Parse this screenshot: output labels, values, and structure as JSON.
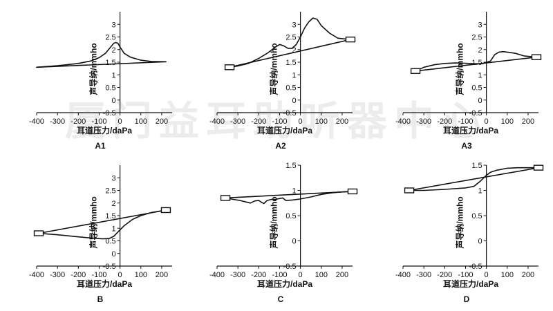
{
  "watermark": "厦门益耳助听器中心",
  "chart_data": [
    {
      "type": "line",
      "title": "A1",
      "xlabel": "耳道压力/daPa",
      "ylabel": "声导纳/mmho",
      "xlim": [
        -400,
        250
      ],
      "ylim": [
        -0.5,
        3.5
      ],
      "xticks": [
        -400,
        -300,
        -200,
        -100,
        0,
        100,
        200
      ],
      "yticks": [
        -0.5,
        0,
        0.5,
        1,
        1.5,
        2,
        2.5,
        3
      ],
      "grid": false,
      "series": [
        {
          "x": [
            -400,
            -300,
            -200,
            -140,
            -100,
            -70,
            -45,
            -30,
            -20,
            -10,
            0,
            20,
            50,
            100,
            150,
            220
          ],
          "y": [
            1.3,
            1.36,
            1.45,
            1.55,
            1.68,
            1.85,
            2.1,
            2.25,
            2.28,
            2.25,
            2.1,
            1.85,
            1.7,
            1.58,
            1.53,
            1.52
          ]
        },
        {
          "x": [
            -400,
            220
          ],
          "y": [
            1.3,
            1.52
          ]
        }
      ],
      "markers": []
    },
    {
      "type": "line",
      "title": "A2",
      "xlabel": "耳道压力/daPa",
      "ylabel": "声导纳/mmho",
      "xlim": [
        -400,
        250
      ],
      "ylim": [
        -0.5,
        3.5
      ],
      "xticks": [
        -400,
        -300,
        -200,
        -100,
        0,
        100,
        200
      ],
      "yticks": [
        -0.5,
        0,
        0.5,
        1,
        1.5,
        2,
        2.5,
        3
      ],
      "grid": false,
      "series": [
        {
          "x": [
            -340,
            -300,
            -250,
            -200,
            -160,
            -120,
            -100,
            -80,
            -60,
            -40,
            -20,
            0,
            20,
            40,
            60,
            80,
            100,
            140,
            180,
            240
          ],
          "y": [
            1.3,
            1.35,
            1.45,
            1.65,
            1.85,
            2.1,
            2.2,
            2.15,
            2.05,
            2.05,
            2.2,
            2.5,
            2.85,
            3.1,
            3.25,
            3.2,
            2.95,
            2.65,
            2.45,
            2.4
          ]
        },
        {
          "x": [
            -340,
            240
          ],
          "y": [
            1.3,
            2.4
          ]
        }
      ],
      "markers": [
        {
          "x": -340,
          "y": 1.3
        },
        {
          "x": 240,
          "y": 2.4
        }
      ]
    },
    {
      "type": "line",
      "title": "A3",
      "xlabel": "耳道压力/daPa",
      "ylabel": "声导纳/mmho",
      "xlim": [
        -400,
        250
      ],
      "ylim": [
        -0.5,
        3.5
      ],
      "xticks": [
        -400,
        -300,
        -200,
        -100,
        0,
        100,
        200
      ],
      "yticks": [
        -0.5,
        0,
        0.5,
        1,
        1.5,
        2,
        2.5,
        3
      ],
      "grid": false,
      "series": [
        {
          "x": [
            -340,
            -300,
            -250,
            -200,
            -150,
            -100,
            -60,
            -20,
            20,
            40,
            60,
            80,
            100,
            140,
            180,
            240
          ],
          "y": [
            1.15,
            1.3,
            1.4,
            1.45,
            1.47,
            1.46,
            1.44,
            1.44,
            1.55,
            1.8,
            1.9,
            1.92,
            1.9,
            1.85,
            1.75,
            1.7
          ]
        },
        {
          "x": [
            -340,
            240
          ],
          "y": [
            1.15,
            1.7
          ]
        }
      ],
      "markers": [
        {
          "x": -340,
          "y": 1.15
        },
        {
          "x": 240,
          "y": 1.7
        }
      ]
    },
    {
      "type": "line",
      "title": "B",
      "xlabel": "耳道压力/daPa",
      "ylabel": "声导纳/mmho",
      "xlim": [
        -400,
        250
      ],
      "ylim": [
        -0.5,
        3.5
      ],
      "xticks": [
        -400,
        -300,
        -200,
        -100,
        0,
        100,
        200
      ],
      "yticks": [
        -0.5,
        0,
        0.5,
        1,
        1.5,
        2,
        2.5,
        3
      ],
      "grid": false,
      "series": [
        {
          "x": [
            -390,
            -300,
            -200,
            -120,
            -80,
            -50,
            -30,
            -10,
            20,
            60,
            100,
            150,
            220
          ],
          "y": [
            0.8,
            0.74,
            0.66,
            0.6,
            0.58,
            0.6,
            0.68,
            0.85,
            1.1,
            1.35,
            1.5,
            1.62,
            1.72
          ]
        },
        {
          "x": [
            -390,
            220
          ],
          "y": [
            0.8,
            1.72
          ]
        }
      ],
      "markers": [
        {
          "x": -390,
          "y": 0.8
        },
        {
          "x": 220,
          "y": 1.72
        }
      ]
    },
    {
      "type": "line",
      "title": "C",
      "xlabel": "耳道压力/daPa",
      "ylabel": "声导纳/mmho",
      "xlim": [
        -400,
        250
      ],
      "ylim": [
        -0.5,
        1.5
      ],
      "xticks": [
        -400,
        -300,
        -200,
        -100,
        0,
        100,
        200
      ],
      "yticks": [
        -0.5,
        0,
        0.5,
        1,
        1.5
      ],
      "grid": false,
      "series": [
        {
          "x": [
            -360,
            -320,
            -290,
            -260,
            -240,
            -220,
            -200,
            -185,
            -175,
            -160,
            -140,
            -120,
            -100,
            -85,
            -70,
            -40,
            0,
            50,
            100,
            150,
            200,
            250
          ],
          "y": [
            0.85,
            0.82,
            0.8,
            0.77,
            0.75,
            0.79,
            0.8,
            0.76,
            0.74,
            0.8,
            0.82,
            0.82,
            0.84,
            0.85,
            0.8,
            0.81,
            0.83,
            0.87,
            0.92,
            0.95,
            0.97,
            0.98
          ]
        },
        {
          "x": [
            -360,
            250
          ],
          "y": [
            0.85,
            0.98
          ]
        }
      ],
      "markers": [
        {
          "x": -360,
          "y": 0.85
        },
        {
          "x": 250,
          "y": 0.98
        }
      ]
    },
    {
      "type": "line",
      "title": "D",
      "xlabel": "耳道压力/daPa",
      "ylabel": "声导纳/mmho",
      "xlim": [
        -400,
        250
      ],
      "ylim": [
        -0.5,
        1.5
      ],
      "xticks": [
        -400,
        -300,
        -200,
        -100,
        0,
        100,
        200
      ],
      "yticks": [
        -0.5,
        0,
        0.5,
        1,
        1.5
      ],
      "grid": false,
      "series": [
        {
          "x": [
            -370,
            -300,
            -200,
            -100,
            -60,
            -30,
            0,
            20,
            50,
            100,
            150,
            200,
            250
          ],
          "y": [
            1.0,
            1.0,
            1.02,
            1.05,
            1.08,
            1.18,
            1.3,
            1.36,
            1.4,
            1.44,
            1.45,
            1.45,
            1.45
          ]
        },
        {
          "x": [
            -370,
            250
          ],
          "y": [
            1.0,
            1.45
          ]
        }
      ],
      "markers": [
        {
          "x": -370,
          "y": 1.0
        },
        {
          "x": 250,
          "y": 1.45
        }
      ]
    }
  ]
}
